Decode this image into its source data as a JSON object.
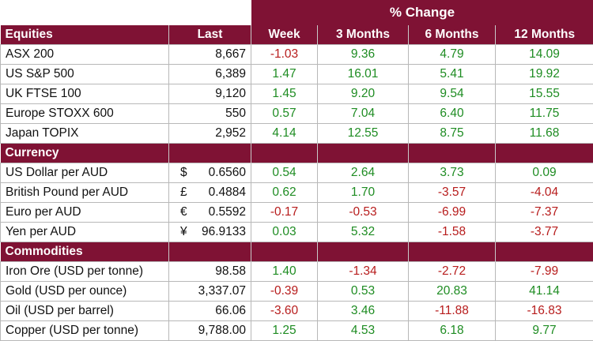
{
  "pct_change_title": "% Change",
  "columns": {
    "last": "Last",
    "week": "Week",
    "m3": "3 Months",
    "m6": "6 Months",
    "m12": "12 Months"
  },
  "sections": [
    {
      "title": "Equities",
      "rows": [
        {
          "name": "ASX 200",
          "sym": "",
          "last": "8,667",
          "week": "-1.03",
          "m3": "9.36",
          "m6": "4.79",
          "m12": "14.09"
        },
        {
          "name": "US S&P 500",
          "sym": "",
          "last": "6,389",
          "week": "1.47",
          "m3": "16.01",
          "m6": "5.41",
          "m12": "19.92"
        },
        {
          "name": "UK FTSE 100",
          "sym": "",
          "last": "9,120",
          "week": "1.45",
          "m3": "9.20",
          "m6": "9.54",
          "m12": "15.55"
        },
        {
          "name": "Europe STOXX 600",
          "sym": "",
          "last": "550",
          "week": "0.57",
          "m3": "7.04",
          "m6": "6.40",
          "m12": "11.75"
        },
        {
          "name": "Japan TOPIX",
          "sym": "",
          "last": "2,952",
          "week": "4.14",
          "m3": "12.55",
          "m6": "8.75",
          "m12": "11.68"
        }
      ]
    },
    {
      "title": "Currency",
      "rows": [
        {
          "name": "US Dollar per AUD",
          "sym": "$",
          "last": "0.6560",
          "week": "0.54",
          "m3": "2.64",
          "m6": "3.73",
          "m12": "0.09"
        },
        {
          "name": "British Pound per AUD",
          "sym": "£",
          "last": "0.4884",
          "week": "0.62",
          "m3": "1.70",
          "m6": "-3.57",
          "m12": "-4.04"
        },
        {
          "name": "Euro per AUD",
          "sym": "€",
          "last": "0.5592",
          "week": "-0.17",
          "m3": "-0.53",
          "m6": "-6.99",
          "m12": "-7.37"
        },
        {
          "name": "Yen per AUD",
          "sym": "¥",
          "last": "96.9133",
          "week": "0.03",
          "m3": "5.32",
          "m6": "-1.58",
          "m12": "-3.77"
        }
      ]
    },
    {
      "title": "Commodities",
      "rows": [
        {
          "name": "Iron Ore (USD per tonne)",
          "sym": "",
          "last": "98.58",
          "week": "1.40",
          "m3": "-1.34",
          "m6": "-2.72",
          "m12": "-7.99"
        },
        {
          "name": "Gold (USD per ounce)",
          "sym": "",
          "last": "3,337.07",
          "week": "-0.39",
          "m3": "0.53",
          "m6": "20.83",
          "m12": "41.14"
        },
        {
          "name": "Oil (USD per barrel)",
          "sym": "",
          "last": "66.06",
          "week": "-3.60",
          "m3": "3.46",
          "m6": "-11.88",
          "m12": "-16.83"
        },
        {
          "name": "Copper (USD per tonne)",
          "sym": "",
          "last": "9,788.00",
          "week": "1.25",
          "m3": "4.53",
          "m6": "6.18",
          "m12": "9.77"
        }
      ]
    }
  ],
  "colors": {
    "header_bg": "#7f1234",
    "positive": "#1e8c22",
    "negative": "#b71c1c"
  }
}
